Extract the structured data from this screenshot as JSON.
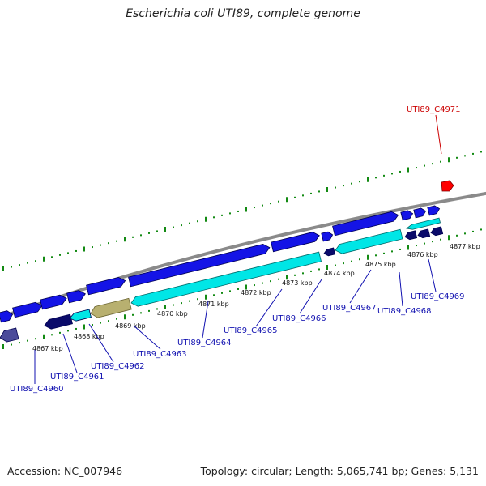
{
  "title": "Escherichia coli UTI89, complete genome",
  "footer": {
    "accession": "Accession: NC_007946",
    "summary": "Topology: circular; Length: 5,065,741 bp; Genes: 5,131"
  },
  "colors": {
    "backbone": "#8a8a8a",
    "forward_cds": "#1414e6",
    "reverse_cds": "#00e6e6",
    "dark_feature": "#0a0a6a",
    "khaki_feature": "#b8b070",
    "highlight": "#ff0000",
    "tick": "#138a13",
    "label": "#1010b0",
    "highlight_label": "#cc0000"
  },
  "ticks": [
    {
      "label": "4867 kbp"
    },
    {
      "label": "4868 kbp"
    },
    {
      "label": "4869 kbp"
    },
    {
      "label": "4870 kbp"
    },
    {
      "label": "4871 kbp"
    },
    {
      "label": "4872 kbp"
    },
    {
      "label": "4873 kbp"
    },
    {
      "label": "4874 kbp"
    },
    {
      "label": "4875 kbp"
    },
    {
      "label": "4876 kbp"
    },
    {
      "label": "4877 kbp"
    }
  ],
  "genes": [
    {
      "label": "UTI89_C4960"
    },
    {
      "label": "UTI89_C4961"
    },
    {
      "label": "UTI89_C4962"
    },
    {
      "label": "UTI89_C4963"
    },
    {
      "label": "UTI89_C4964"
    },
    {
      "label": "UTI89_C4965"
    },
    {
      "label": "UTI89_C4966"
    },
    {
      "label": "UTI89_C4967"
    },
    {
      "label": "UTI89_C4968"
    },
    {
      "label": "UTI89_C4969"
    }
  ],
  "highlight_gene": {
    "label": "UTI89_C4971"
  }
}
